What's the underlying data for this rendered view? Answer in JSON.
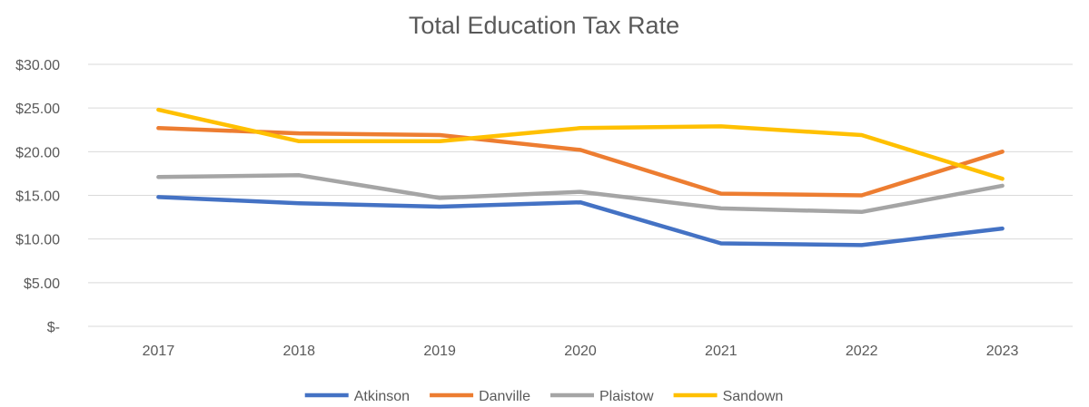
{
  "chart_data": {
    "type": "line",
    "title": "Total Education Tax Rate",
    "xlabel": "",
    "ylabel": "",
    "categories": [
      "2017",
      "2018",
      "2019",
      "2020",
      "2021",
      "2022",
      "2023"
    ],
    "y_tick_labels": [
      "$-",
      "$5.00",
      "$10.00",
      "$15.00",
      "$20.00",
      "$25.00",
      "$30.00"
    ],
    "ylim": [
      0,
      30
    ],
    "y_tick_step": 5,
    "grid": true,
    "legend_position": "bottom",
    "series": [
      {
        "name": "Atkinson",
        "color": "#4472C4",
        "values": [
          14.8,
          14.1,
          13.7,
          14.2,
          9.5,
          9.3,
          11.2
        ]
      },
      {
        "name": "Danville",
        "color": "#ED7D31",
        "values": [
          22.7,
          22.1,
          21.9,
          20.2,
          15.2,
          15.0,
          20.0
        ]
      },
      {
        "name": "Plaistow",
        "color": "#A5A5A5",
        "values": [
          17.1,
          17.3,
          14.7,
          15.4,
          13.5,
          13.1,
          16.1
        ]
      },
      {
        "name": "Sandown",
        "color": "#FFC000",
        "values": [
          24.8,
          21.2,
          21.2,
          22.7,
          22.9,
          21.9,
          16.9
        ]
      }
    ]
  }
}
